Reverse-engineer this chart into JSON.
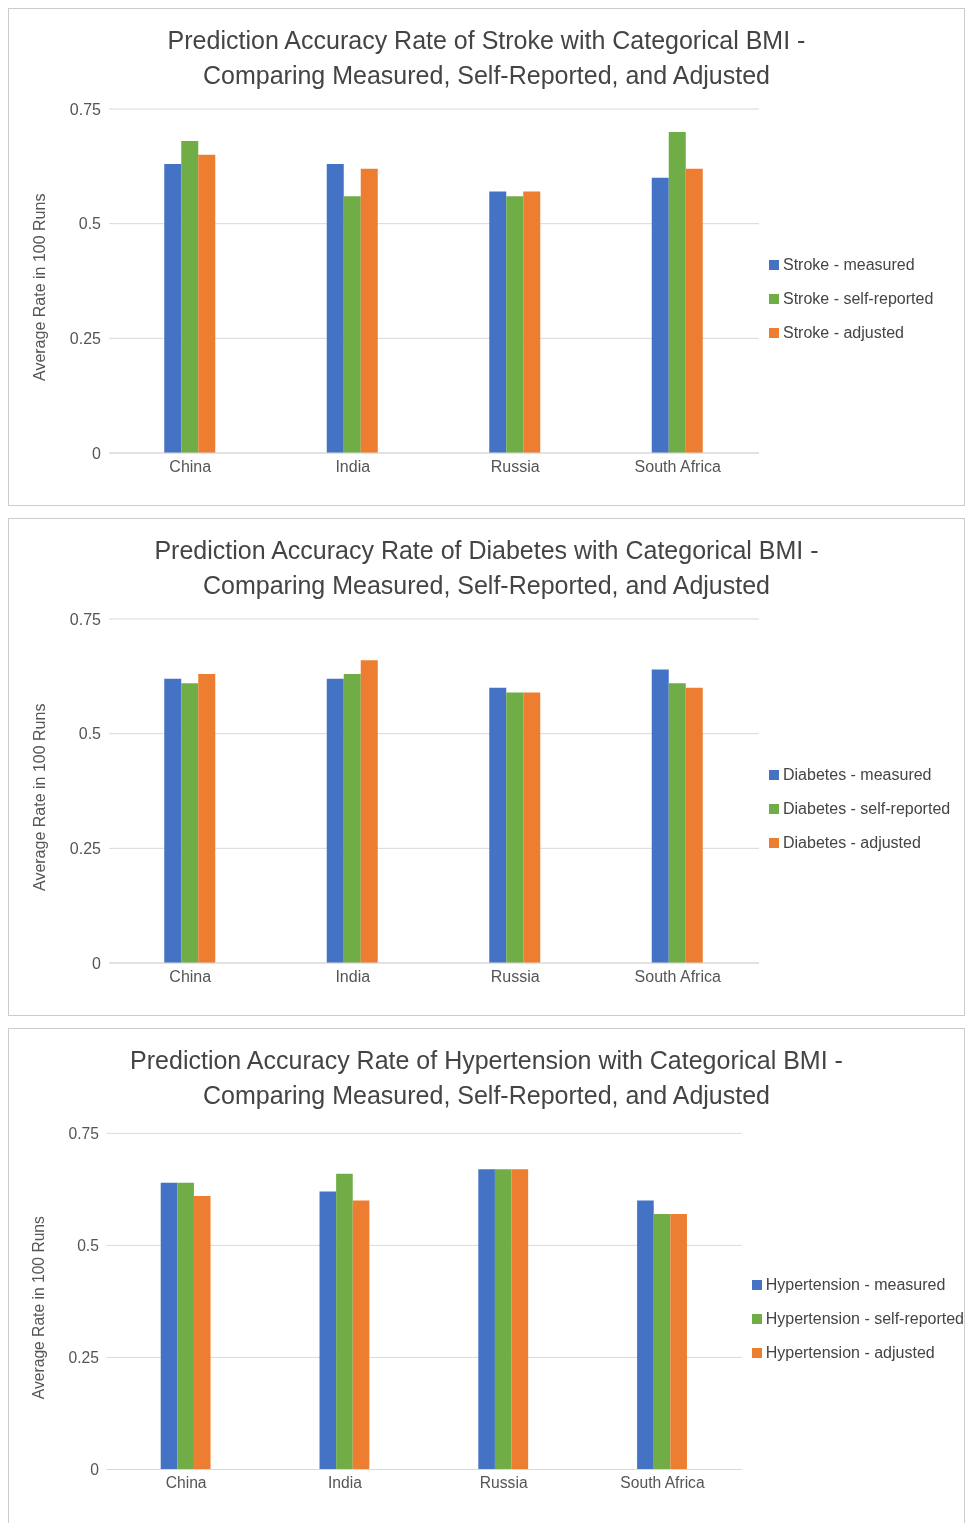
{
  "chart_data": [
    {
      "type": "bar",
      "title": "Prediction Accuracy Rate of Stroke with Categorical BMI - Comparing Measured, Self-Reported, and Adjusted",
      "ylabel": "Average Rate in 100 Runs",
      "categories": [
        "China",
        "India",
        "Russia",
        "South Africa"
      ],
      "series": [
        {
          "name": "Stroke - measured",
          "color": "#4472c4",
          "values": [
            0.63,
            0.63,
            0.57,
            0.6
          ]
        },
        {
          "name": "Stroke - self-reported",
          "color": "#70ad47",
          "values": [
            0.68,
            0.56,
            0.56,
            0.7
          ]
        },
        {
          "name": "Stroke - adjusted",
          "color": "#ed7d31",
          "values": [
            0.65,
            0.62,
            0.57,
            0.62
          ]
        }
      ],
      "ylim": [
        0,
        0.75
      ],
      "yticks": [
        0,
        0.25,
        0.5,
        0.75
      ],
      "grid": "y",
      "legend": "right"
    },
    {
      "type": "bar",
      "title": "Prediction Accuracy Rate of Diabetes with Categorical BMI - Comparing Measured, Self-Reported, and Adjusted",
      "ylabel": "Average Rate in 100 Runs",
      "categories": [
        "China",
        "India",
        "Russia",
        "South Africa"
      ],
      "series": [
        {
          "name": "Diabetes - measured",
          "color": "#4472c4",
          "values": [
            0.62,
            0.62,
            0.6,
            0.64
          ]
        },
        {
          "name": "Diabetes - self-reported",
          "color": "#70ad47",
          "values": [
            0.61,
            0.63,
            0.59,
            0.61
          ]
        },
        {
          "name": "Diabetes - adjusted",
          "color": "#ed7d31",
          "values": [
            0.63,
            0.66,
            0.59,
            0.6
          ]
        }
      ],
      "ylim": [
        0,
        0.75
      ],
      "yticks": [
        0,
        0.25,
        0.5,
        0.75
      ],
      "grid": "y",
      "legend": "right"
    },
    {
      "type": "bar",
      "title": "Prediction Accuracy Rate of Hypertension with Categorical BMI - Comparing Measured, Self-Reported, and Adjusted",
      "ylabel": "Average Rate in 100 Runs",
      "categories": [
        "China",
        "India",
        "Russia",
        "South Africa"
      ],
      "series": [
        {
          "name": "Hypertension - measured",
          "color": "#4472c4",
          "values": [
            0.64,
            0.62,
            0.67,
            0.6
          ]
        },
        {
          "name": "Hypertension - self-reported",
          "color": "#70ad47",
          "values": [
            0.64,
            0.66,
            0.67,
            0.57
          ]
        },
        {
          "name": "Hypertension - adjusted",
          "color": "#ed7d31",
          "values": [
            0.61,
            0.6,
            0.67,
            0.57
          ]
        }
      ],
      "ylim": [
        0,
        0.75
      ],
      "yticks": [
        0,
        0.25,
        0.5,
        0.75
      ],
      "grid": "y",
      "legend": "right"
    }
  ]
}
